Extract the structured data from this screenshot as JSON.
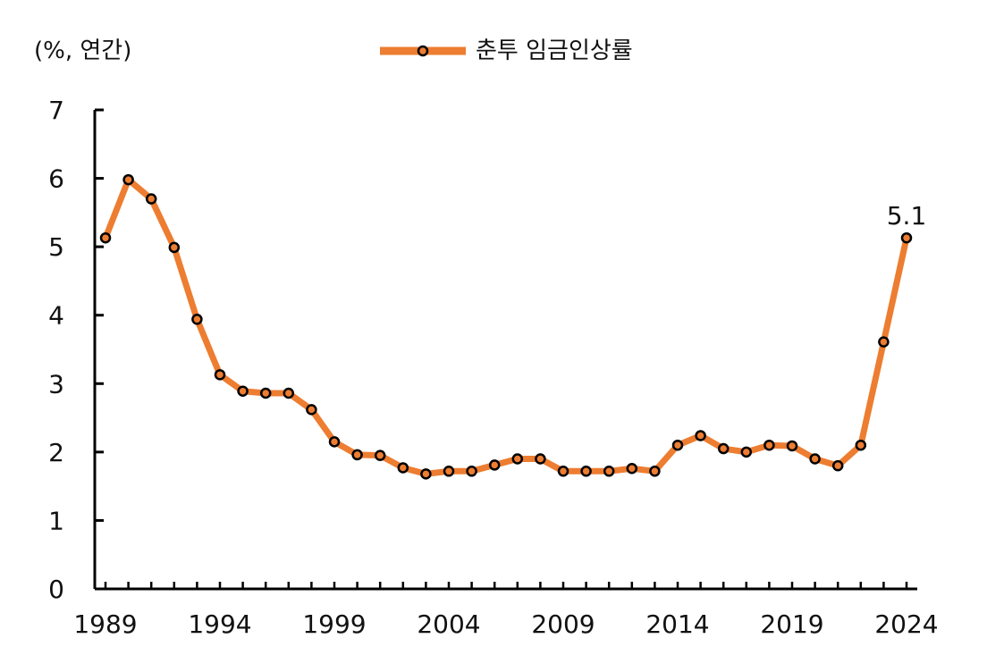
{
  "unit_label": "(%, 연간)",
  "colors": {
    "line": "#ed7d31",
    "marker_edge": "#000000",
    "axis": "#000000"
  },
  "chart_data": {
    "type": "line",
    "title": "",
    "xlabel": "",
    "ylabel": "",
    "ylim": [
      0,
      7
    ],
    "yticks": [
      "0",
      "1",
      "2",
      "3",
      "4",
      "5",
      "6",
      "7"
    ],
    "xticks": [
      "1989",
      "1994",
      "1999",
      "2004",
      "2009",
      "2014",
      "2019",
      "2024"
    ],
    "grid": false,
    "legend": {
      "position": "top-center"
    },
    "x": [
      1989,
      1990,
      1991,
      1992,
      1993,
      1994,
      1995,
      1996,
      1997,
      1998,
      1999,
      2000,
      2001,
      2002,
      2003,
      2004,
      2005,
      2006,
      2007,
      2008,
      2009,
      2010,
      2011,
      2012,
      2013,
      2014,
      2015,
      2016,
      2017,
      2018,
      2019,
      2020,
      2021,
      2022,
      2023,
      2024
    ],
    "series": [
      {
        "name": "춘투 임금인상률",
        "values": [
          5.13,
          5.98,
          5.7,
          4.99,
          3.94,
          3.13,
          2.89,
          2.86,
          2.86,
          2.62,
          2.15,
          1.96,
          1.95,
          1.77,
          1.68,
          1.72,
          1.72,
          1.81,
          1.9,
          1.9,
          1.72,
          1.72,
          1.72,
          1.76,
          1.72,
          2.1,
          2.24,
          2.05,
          2.0,
          2.1,
          2.09,
          1.9,
          1.8,
          2.1,
          3.61,
          5.13
        ]
      }
    ],
    "annotations": [
      {
        "x": 2024,
        "label": "5.1"
      }
    ]
  }
}
